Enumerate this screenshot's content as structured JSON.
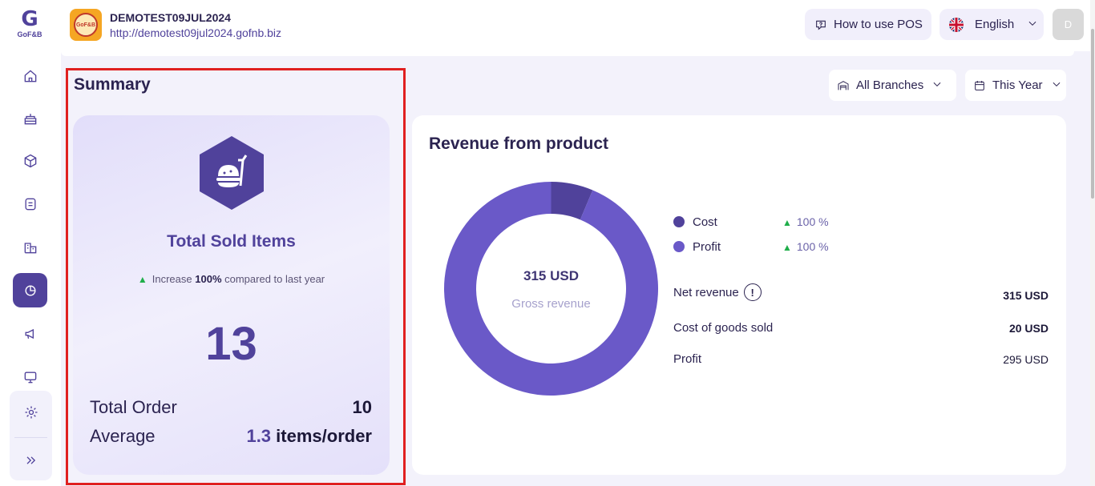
{
  "brand": {
    "logo_text": "G",
    "logo_sub": "GoF&B"
  },
  "header": {
    "store_name": "DEMOTEST09JUL2024",
    "store_url": "http://demotest09jul2024.gofnb.biz",
    "store_logo_text": "GoF&B",
    "pos_button": "How to use POS",
    "language": "English",
    "avatar_initial": "D"
  },
  "summary": {
    "title": "Summary",
    "card_title": "Total Sold Items",
    "increase_prefix": "Increase",
    "increase_value": "100%",
    "increase_suffix": "compared to last year",
    "total_sold": "13",
    "total_order_label": "Total Order",
    "total_order_value": "10",
    "average_label": "Average",
    "average_value": "1.3",
    "average_unit": "items/order"
  },
  "filters": {
    "branch": "All Branches",
    "period": "This Year"
  },
  "revenue": {
    "title": "Revenue from product",
    "center_value": "315 USD",
    "center_label": "Gross revenue",
    "legend": [
      {
        "name": "Cost",
        "pct": "100 %",
        "color": "#50429b"
      },
      {
        "name": "Profit",
        "pct": "100 %",
        "color": "#6a59c8"
      }
    ],
    "stats": [
      {
        "label": "Net revenue",
        "value": "315 USD"
      },
      {
        "label": "Cost of goods sold",
        "value": "20 USD"
      },
      {
        "label": "Profit",
        "value": "295 USD"
      }
    ],
    "chart_data": {
      "type": "pie",
      "categories": [
        "Cost",
        "Profit"
      ],
      "values": [
        20,
        295
      ]
    }
  },
  "colors": {
    "accent": "#50429b",
    "profit": "#6a59c8",
    "increase": "#1fae4a"
  },
  "icons": [
    "home-icon",
    "cake-icon",
    "box-icon",
    "receipt-icon",
    "store-icon",
    "chart-icon",
    "megaphone-icon",
    "pos-icon",
    "settings-icon",
    "expand-icon"
  ]
}
